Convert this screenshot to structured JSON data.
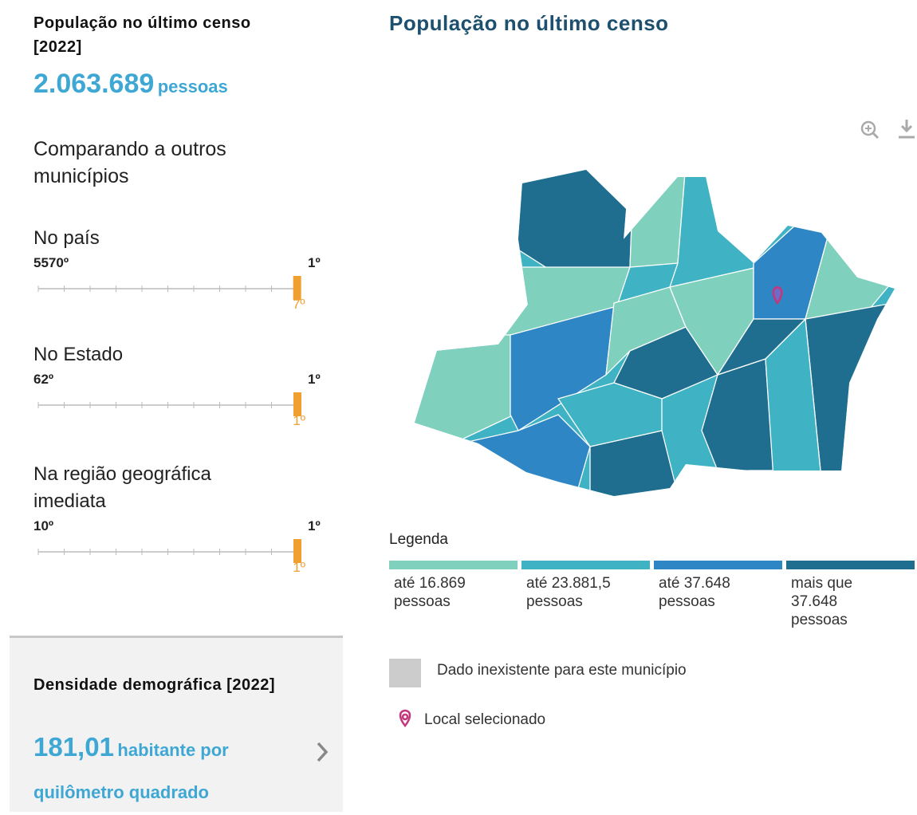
{
  "summary": {
    "title": "População no último censo [2022]",
    "value": "2.063.689",
    "unit": "pessoas"
  },
  "comparison": {
    "heading": "Comparando a outros municípios",
    "rankings": [
      {
        "label": "No país",
        "min": {
          "value": 5570,
          "label": "5570º"
        },
        "max": {
          "value": 1,
          "label": "1º"
        },
        "rank": {
          "value": 7,
          "label": "7º"
        }
      },
      {
        "label": "No Estado",
        "min": {
          "value": 62,
          "label": "62º"
        },
        "max": {
          "value": 1,
          "label": "1º"
        },
        "rank": {
          "value": 1,
          "label": "1º"
        }
      },
      {
        "label": "Na região geográfica imediata",
        "min": {
          "value": 10,
          "label": "10º"
        },
        "max": {
          "value": 1,
          "label": "1º"
        },
        "rank": {
          "value": 1,
          "label": "1º"
        }
      }
    ]
  },
  "density": {
    "title": "Densidade demográfica [2022]",
    "value": "181,01",
    "unit": "habitante por quilômetro quadrado"
  },
  "map": {
    "title": "População no último censo",
    "legend": {
      "title": "Legenda",
      "items": [
        {
          "label": "até 16.869 pessoas",
          "color": "#7fd0bd"
        },
        {
          "label": "até 23.881,5 pessoas",
          "color": "#3fb3c4"
        },
        {
          "label": "até 37.648 pessoas",
          "color": "#2f86c4"
        },
        {
          "label": "mais que 37.648 pessoas",
          "color": "#1f6e90"
        }
      ],
      "missing": {
        "label": "Dado inexistente para este município",
        "color": "#cccccc"
      },
      "selected": {
        "label": "Local selecionado",
        "color": "#c4377c"
      }
    }
  }
}
